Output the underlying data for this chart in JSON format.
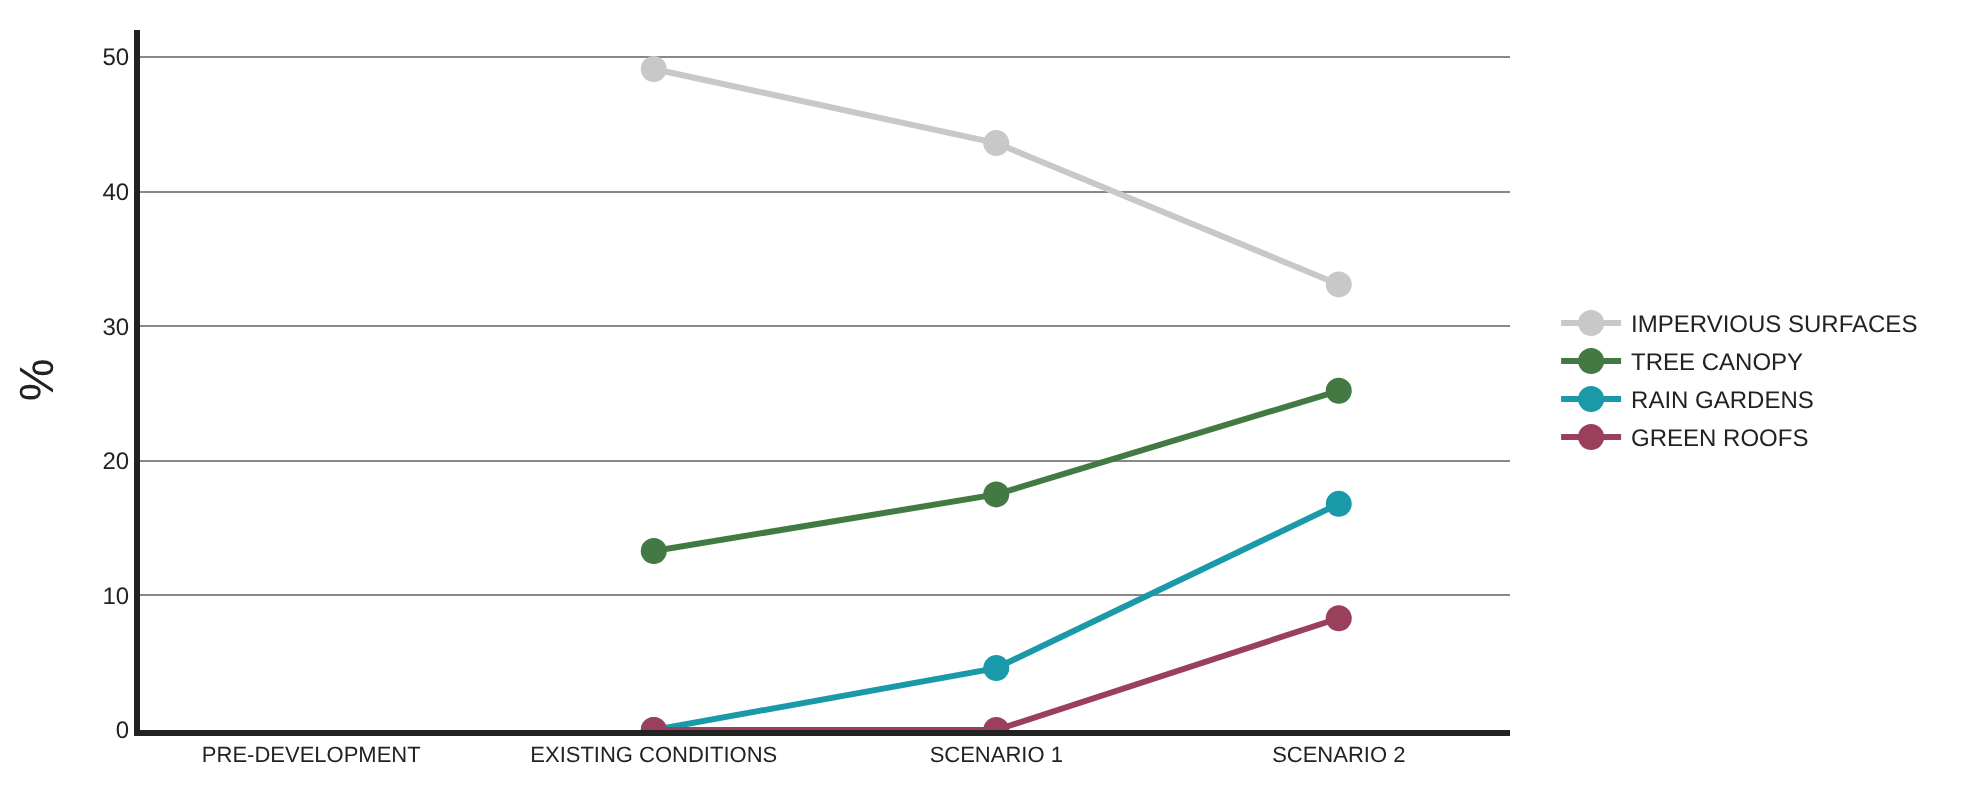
{
  "chart_data": {
    "type": "line",
    "ylabel": "%",
    "categories": [
      "PRE-DEVELOPMENT",
      "EXISTING CONDITIONS",
      "SCENARIO 1",
      "SCENARIO 2"
    ],
    "series": [
      {
        "name": "IMPERVIOUS SURFACES",
        "color": "#c8c8c8",
        "values": [
          null,
          49.1,
          43.6,
          33.1
        ]
      },
      {
        "name": "TREE CANOPY",
        "color": "#437a43",
        "values": [
          null,
          13.3,
          17.5,
          25.2
        ]
      },
      {
        "name": "RAIN GARDENS",
        "color": "#1a9aa8",
        "values": [
          null,
          0,
          4.6,
          16.8
        ]
      },
      {
        "name": "GREEN ROOFS",
        "color": "#9a3f5c",
        "values": [
          null,
          0,
          0,
          8.3
        ]
      }
    ],
    "ylim": [
      0,
      52
    ],
    "yticks": [
      0,
      10,
      20,
      30,
      40,
      50
    ],
    "grid": "y",
    "legend": "right",
    "marker": "circle",
    "line_style": "solid"
  }
}
